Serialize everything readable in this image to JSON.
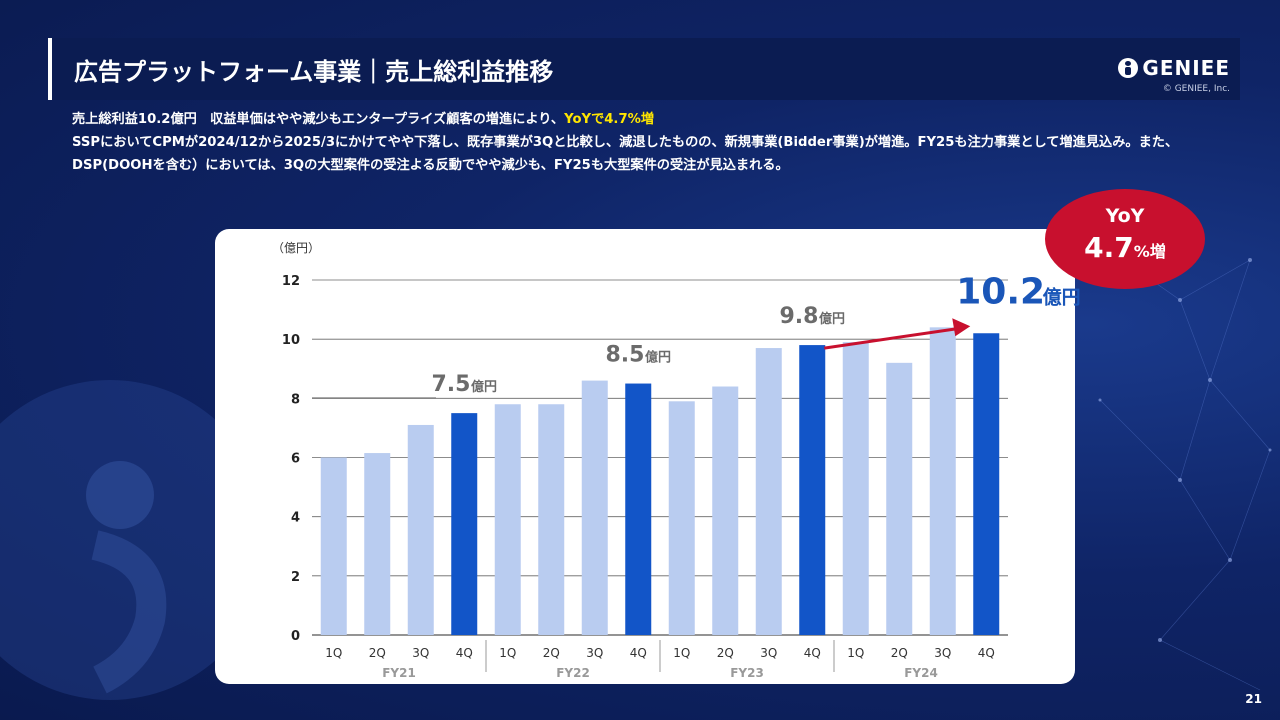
{
  "title": "広告プラットフォーム事業｜売上総利益推移",
  "logo": {
    "name": "GENIEE",
    "copyright": "© GENIEE, Inc."
  },
  "description": {
    "line1_prefix": "売上総利益10.2億円　収益単価はやや減少もエンタープライズ顧客の増進により、",
    "line1_highlight": "YoYで4.7%増",
    "line2": "SSPにおいてCPMが2024/12から2025/3にかけてやや下落し、既存事業が3Qと比較し、減退したものの、新規事業(Bidder事業)が増進。FY25も注力事業として増進見込み。また、DSP(DOOHを含む）においては、3Qの大型案件の受注よる反動でやや減少も、FY25も大型案件の受注が見込まれる。"
  },
  "yoy_badge": {
    "label": "YoY",
    "value": "4.7",
    "unit": "%増"
  },
  "page_number": "21",
  "colors": {
    "q4_bar": "#1255c8",
    "other_bar": "#b9ccf0",
    "arrow": "#c8102e",
    "callout": "#6b6b6b",
    "final_callout": "#1a56b8"
  },
  "chart_data": {
    "type": "bar",
    "unit_label": "（億円）",
    "ylim": [
      0,
      12
    ],
    "yticks": [
      0,
      2,
      4,
      6,
      8,
      10,
      12
    ],
    "grid": true,
    "categories": [
      "1Q",
      "2Q",
      "3Q",
      "4Q",
      "1Q",
      "2Q",
      "3Q",
      "4Q",
      "1Q",
      "2Q",
      "3Q",
      "4Q",
      "1Q",
      "2Q",
      "3Q",
      "4Q"
    ],
    "fiscal_years": [
      "FY21",
      "FY22",
      "FY23",
      "FY24"
    ],
    "values": [
      6.0,
      6.15,
      7.1,
      7.5,
      7.8,
      7.8,
      8.6,
      8.5,
      7.9,
      8.4,
      9.7,
      9.8,
      9.9,
      9.2,
      10.4,
      10.2
    ],
    "highlight_indices": [
      3,
      7,
      11,
      15
    ],
    "callouts": [
      {
        "index": 3,
        "value": "7.5",
        "unit": "億円"
      },
      {
        "index": 7,
        "value": "8.5",
        "unit": "億円"
      },
      {
        "index": 11,
        "value": "9.8",
        "unit": "億円"
      },
      {
        "index": 15,
        "value": "10.2",
        "unit": "億円"
      }
    ]
  }
}
